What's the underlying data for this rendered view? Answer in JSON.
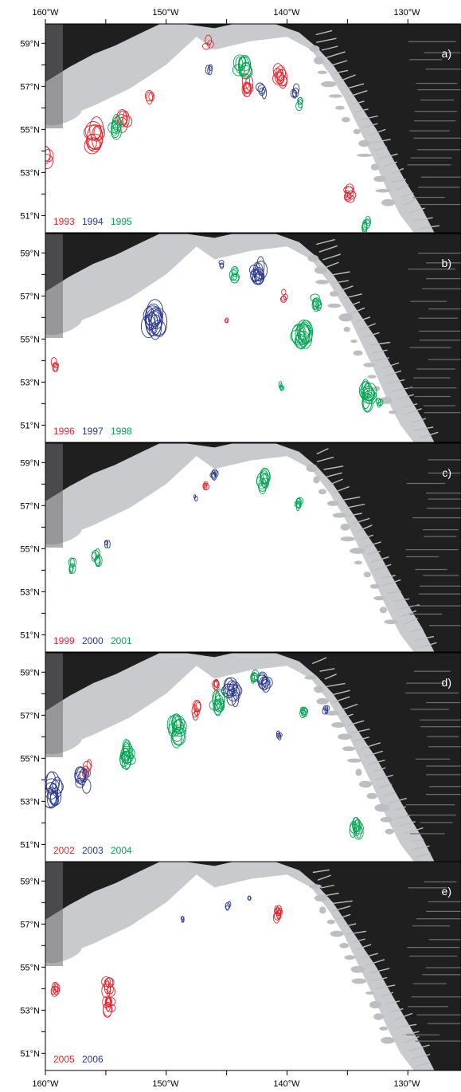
{
  "axes": {
    "lon_labels": [
      "160°W",
      "150°W",
      "140°W",
      "130°W"
    ],
    "lat_labels": [
      "59°N",
      "57°N",
      "55°N",
      "53°N",
      "51°N"
    ]
  },
  "colors": {
    "red": "#e8242c",
    "blue": "#2b3990",
    "green": "#00a651",
    "land": "#1f1f1f",
    "shelf": "#c9cacd"
  },
  "panels": [
    {
      "tag": "a)",
      "years": [
        {
          "label": "1993",
          "color": "red"
        },
        {
          "label": "1994",
          "color": "blue"
        },
        {
          "label": "1995",
          "color": "green"
        }
      ],
      "eddies": [
        {
          "color": "red",
          "lon": -159.7,
          "lat": 53.7,
          "r": 0.9,
          "n": 4
        },
        {
          "color": "red",
          "lon": -155.8,
          "lat": 54.6,
          "r": 1.0,
          "n": 10
        },
        {
          "color": "red",
          "lon": -153.5,
          "lat": 55.5,
          "r": 0.7,
          "n": 6
        },
        {
          "color": "red",
          "lon": -151.3,
          "lat": 56.6,
          "r": 0.5,
          "n": 3
        },
        {
          "color": "red",
          "lon": -143.2,
          "lat": 57.0,
          "r": 0.6,
          "n": 7
        },
        {
          "color": "red",
          "lon": -140.5,
          "lat": 57.5,
          "r": 0.7,
          "n": 9
        },
        {
          "color": "red",
          "lon": -134.8,
          "lat": 52.0,
          "r": 0.55,
          "n": 7
        },
        {
          "color": "red",
          "lon": -146.5,
          "lat": 59.0,
          "r": 0.45,
          "n": 3
        },
        {
          "color": "blue",
          "lon": -146.4,
          "lat": 57.9,
          "r": 0.35,
          "n": 3
        },
        {
          "color": "blue",
          "lon": -142.1,
          "lat": 56.9,
          "r": 0.5,
          "n": 4
        },
        {
          "color": "blue",
          "lon": -139.4,
          "lat": 56.7,
          "r": 0.45,
          "n": 4
        },
        {
          "color": "green",
          "lon": -154.2,
          "lat": 55.1,
          "r": 0.6,
          "n": 8
        },
        {
          "color": "green",
          "lon": -143.7,
          "lat": 57.8,
          "r": 0.8,
          "n": 10
        },
        {
          "color": "green",
          "lon": -139.0,
          "lat": 56.2,
          "r": 0.45,
          "n": 4
        },
        {
          "color": "green",
          "lon": -133.4,
          "lat": 50.6,
          "r": 0.45,
          "n": 6
        }
      ]
    },
    {
      "tag": "b)",
      "years": [
        {
          "label": "1996",
          "color": "red"
        },
        {
          "label": "1997",
          "color": "blue"
        },
        {
          "label": "1998",
          "color": "green"
        }
      ],
      "eddies": [
        {
          "color": "red",
          "lon": -159.2,
          "lat": 53.8,
          "r": 0.35,
          "n": 4
        },
        {
          "color": "red",
          "lon": -140.2,
          "lat": 57.0,
          "r": 0.4,
          "n": 4
        },
        {
          "color": "red",
          "lon": -145.0,
          "lat": 55.9,
          "r": 0.2,
          "n": 2
        },
        {
          "color": "blue",
          "lon": -151.0,
          "lat": 55.8,
          "r": 1.1,
          "n": 14
        },
        {
          "color": "blue",
          "lon": -142.4,
          "lat": 58.1,
          "r": 0.75,
          "n": 12
        },
        {
          "color": "blue",
          "lon": -145.4,
          "lat": 58.5,
          "r": 0.3,
          "n": 3
        },
        {
          "color": "green",
          "lon": -144.3,
          "lat": 58.0,
          "r": 0.5,
          "n": 6
        },
        {
          "color": "green",
          "lon": -138.8,
          "lat": 55.3,
          "r": 0.9,
          "n": 14
        },
        {
          "color": "green",
          "lon": -137.6,
          "lat": 56.7,
          "r": 0.55,
          "n": 7
        },
        {
          "color": "green",
          "lon": -140.5,
          "lat": 52.8,
          "r": 0.25,
          "n": 4
        },
        {
          "color": "green",
          "lon": -133.3,
          "lat": 52.4,
          "r": 0.8,
          "n": 14
        },
        {
          "color": "green",
          "lon": -132.3,
          "lat": 52.0,
          "r": 0.35,
          "n": 4
        }
      ]
    },
    {
      "tag": "c)",
      "years": [
        {
          "label": "1999",
          "color": "red"
        },
        {
          "label": "2000",
          "color": "blue"
        },
        {
          "label": "2001",
          "color": "green"
        }
      ],
      "eddies": [
        {
          "color": "red",
          "lon": -146.7,
          "lat": 58.0,
          "r": 0.3,
          "n": 4
        },
        {
          "color": "blue",
          "lon": -146.0,
          "lat": 58.5,
          "r": 0.35,
          "n": 5
        },
        {
          "color": "blue",
          "lon": -154.9,
          "lat": 55.3,
          "r": 0.3,
          "n": 3
        },
        {
          "color": "blue",
          "lon": -147.6,
          "lat": 57.4,
          "r": 0.2,
          "n": 2
        },
        {
          "color": "green",
          "lon": -155.8,
          "lat": 54.6,
          "r": 0.45,
          "n": 7
        },
        {
          "color": "green",
          "lon": -157.8,
          "lat": 54.2,
          "r": 0.4,
          "n": 5
        },
        {
          "color": "green",
          "lon": -142.0,
          "lat": 58.1,
          "r": 0.65,
          "n": 10
        },
        {
          "color": "green",
          "lon": -139.0,
          "lat": 57.1,
          "r": 0.4,
          "n": 6
        }
      ]
    },
    {
      "tag": "d)",
      "years": [
        {
          "label": "2002",
          "color": "red"
        },
        {
          "label": "2003",
          "color": "blue"
        },
        {
          "label": "2004",
          "color": "green"
        }
      ],
      "eddies": [
        {
          "color": "red",
          "lon": -156.5,
          "lat": 54.5,
          "r": 0.5,
          "n": 5
        },
        {
          "color": "red",
          "lon": -147.5,
          "lat": 57.2,
          "r": 0.55,
          "n": 6
        },
        {
          "color": "red",
          "lon": -145.8,
          "lat": 58.3,
          "r": 0.4,
          "n": 4
        },
        {
          "color": "blue",
          "lon": -159.3,
          "lat": 53.5,
          "r": 0.9,
          "n": 12
        },
        {
          "color": "blue",
          "lon": -156.9,
          "lat": 54.0,
          "r": 0.7,
          "n": 8
        },
        {
          "color": "blue",
          "lon": -144.5,
          "lat": 58.1,
          "r": 0.8,
          "n": 12
        },
        {
          "color": "blue",
          "lon": -141.8,
          "lat": 58.6,
          "r": 0.6,
          "n": 8
        },
        {
          "color": "blue",
          "lon": -140.6,
          "lat": 56.1,
          "r": 0.3,
          "n": 4
        },
        {
          "color": "blue",
          "lon": -136.8,
          "lat": 57.3,
          "r": 0.3,
          "n": 4
        },
        {
          "color": "green",
          "lon": -153.2,
          "lat": 55.2,
          "r": 0.7,
          "n": 14
        },
        {
          "color": "green",
          "lon": -149.2,
          "lat": 56.3,
          "r": 0.85,
          "n": 14
        },
        {
          "color": "green",
          "lon": -145.8,
          "lat": 57.6,
          "r": 0.7,
          "n": 10
        },
        {
          "color": "green",
          "lon": -142.8,
          "lat": 58.8,
          "r": 0.4,
          "n": 6
        },
        {
          "color": "green",
          "lon": -138.6,
          "lat": 57.2,
          "r": 0.4,
          "n": 6
        },
        {
          "color": "green",
          "lon": -134.3,
          "lat": 51.8,
          "r": 0.6,
          "n": 10
        }
      ]
    },
    {
      "tag": "e)",
      "years": [
        {
          "label": "2005",
          "color": "red"
        },
        {
          "label": "2006",
          "color": "blue"
        }
      ],
      "eddies": [
        {
          "color": "red",
          "lon": -159.2,
          "lat": 53.9,
          "r": 0.45,
          "n": 6
        },
        {
          "color": "red",
          "lon": -154.8,
          "lat": 54.1,
          "r": 0.55,
          "n": 8
        },
        {
          "color": "red",
          "lon": -154.8,
          "lat": 53.2,
          "r": 0.55,
          "n": 8
        },
        {
          "color": "red",
          "lon": -140.8,
          "lat": 57.5,
          "r": 0.45,
          "n": 8
        },
        {
          "color": "blue",
          "lon": -148.6,
          "lat": 57.2,
          "r": 0.2,
          "n": 3
        },
        {
          "color": "blue",
          "lon": -144.9,
          "lat": 57.8,
          "r": 0.3,
          "n": 3
        },
        {
          "color": "blue",
          "lon": -143.1,
          "lat": 58.2,
          "r": 0.2,
          "n": 2
        }
      ]
    }
  ]
}
